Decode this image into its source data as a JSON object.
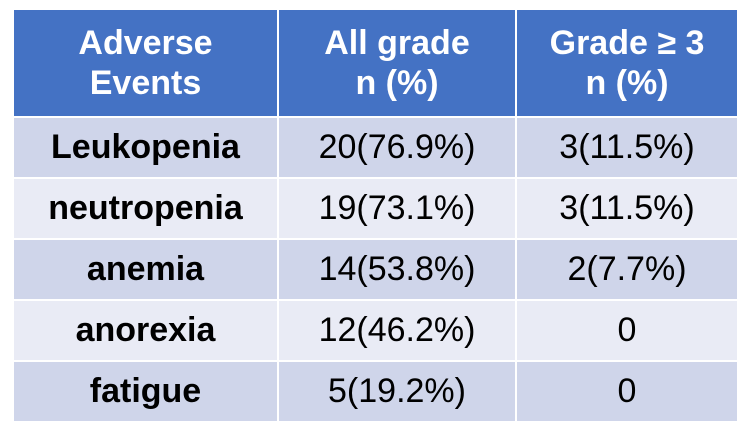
{
  "table": {
    "headers": [
      {
        "line1": "Adverse",
        "line2": "Events"
      },
      {
        "line1": "All grade",
        "line2": "n (%)"
      },
      {
        "line1": "Grade ≥ 3",
        "line2": "n (%)"
      }
    ],
    "rows": [
      {
        "event": "Leukopenia",
        "all_grade": "20(76.9%)",
        "grade3": "3(11.5%)"
      },
      {
        "event": "neutropenia",
        "all_grade": "19(73.1%)",
        "grade3": "3(11.5%)"
      },
      {
        "event": "anemia",
        "all_grade": "14(53.8%)",
        "grade3": "2(7.7%)"
      },
      {
        "event": "anorexia",
        "all_grade": "12(46.2%)",
        "grade3": "0"
      },
      {
        "event": "fatigue",
        "all_grade": "5(19.2%)",
        "grade3": "0"
      }
    ]
  },
  "colors": {
    "header_bg": "#4472c4",
    "row_dark": "#cfd5ea",
    "row_light": "#e9ebf5"
  }
}
